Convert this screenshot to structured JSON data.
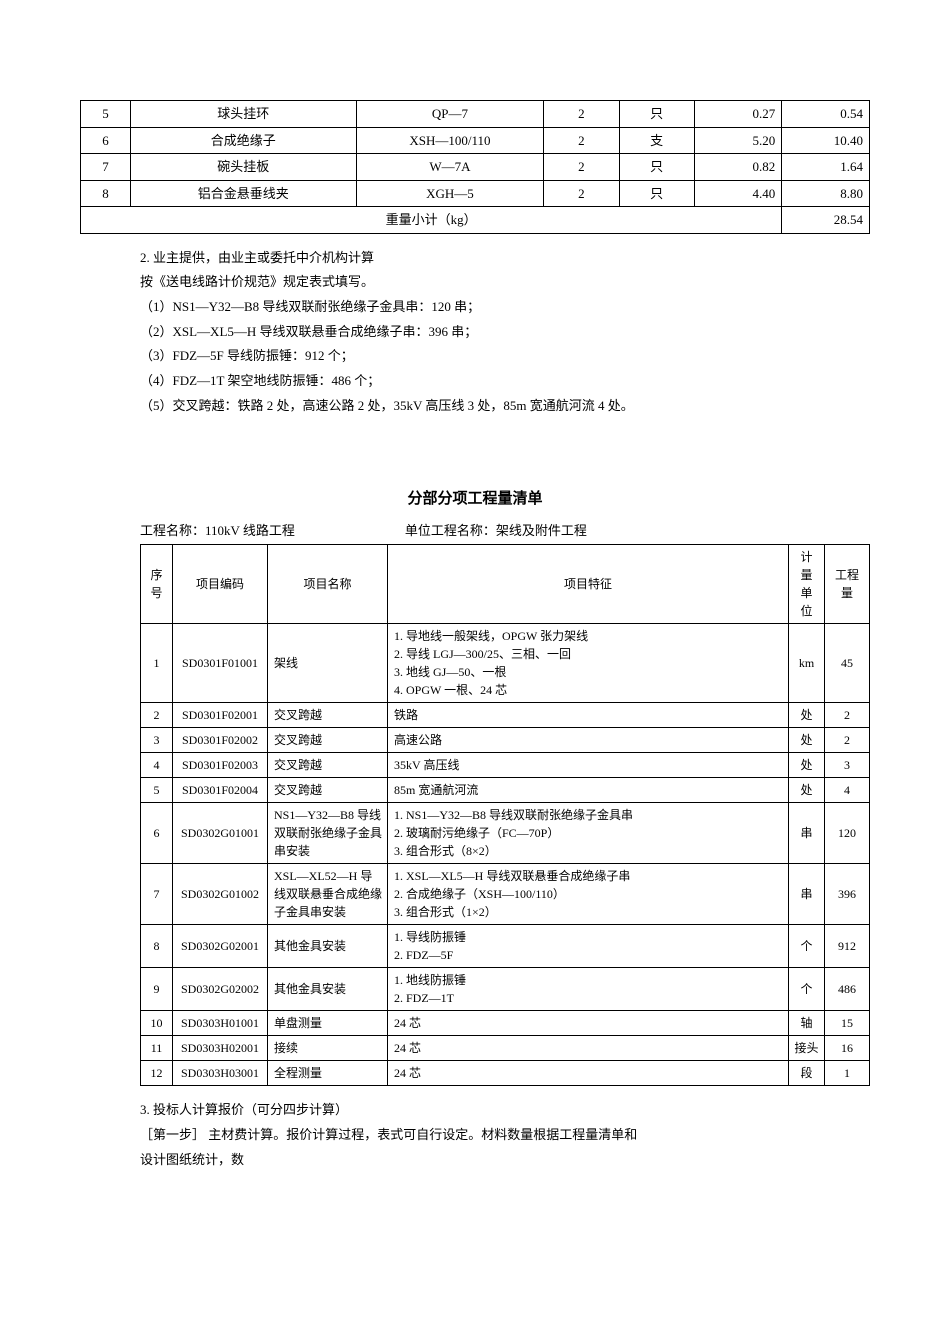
{
  "table1": {
    "rows": [
      {
        "seq": "5",
        "name": "球头挂环",
        "model": "QP—7",
        "qty": "2",
        "unit": "只",
        "weight": "0.27",
        "total": "0.54"
      },
      {
        "seq": "6",
        "name": "合成绝缘子",
        "model": "XSH—100/110",
        "qty": "2",
        "unit": "支",
        "weight": "5.20",
        "total": "10.40"
      },
      {
        "seq": "7",
        "name": "碗头挂板",
        "model": "W—7A",
        "qty": "2",
        "unit": "只",
        "weight": "0.82",
        "total": "1.64"
      },
      {
        "seq": "8",
        "name": "铝合金悬垂线夹",
        "model": "XGH—5",
        "qty": "2",
        "unit": "只",
        "weight": "4.40",
        "total": "8.80"
      }
    ],
    "subtotal_label": "重量小计（kg）",
    "subtotal_value": "28.54"
  },
  "notes": {
    "p1": "2. 业主提供，由业主或委托中介机构计算",
    "p2": "按《送电线路计价规范》规定表式填写。",
    "p3": "（1）NS1—Y32—B8 导线双联耐张绝缘子金具串：120 串；",
    "p4": "（2）XSL—XL5—H 导线双联悬垂合成绝缘子串：396 串；",
    "p5": "（3）FDZ—5F 导线防振锤：912 个；",
    "p6": "（4）FDZ—1T 架空地线防振锤：486 个；",
    "p7": "（5）交叉跨越：铁路 2 处，高速公路 2 处，35kV 高压线 3 处，85m 宽通航河流 4 处。"
  },
  "section_title": "分部分项工程量清单",
  "table2_meta": {
    "proj": "工程名称：110kV 线路工程",
    "unit_proj": "单位工程名称：架线及附件工程"
  },
  "table2": {
    "headers": {
      "seq": "序号",
      "code": "项目编码",
      "name": "项目名称",
      "feat": "项目特征",
      "mu": "计量单位",
      "amt": "工程量"
    },
    "rows": [
      {
        "seq": "1",
        "code": "SD0301F01001",
        "name": "架线",
        "feat": "1. 导地线一般架线，OPGW 张力架线\n2. 导线 LGJ—300/25、三相、一回\n3. 地线 GJ—50、一根\n4. OPGW 一根、24 芯",
        "mu": "km",
        "amt": "45"
      },
      {
        "seq": "2",
        "code": "SD0301F02001",
        "name": "交叉跨越",
        "feat": "铁路",
        "mu": "处",
        "amt": "2"
      },
      {
        "seq": "3",
        "code": "SD0301F02002",
        "name": "交叉跨越",
        "feat": "高速公路",
        "mu": "处",
        "amt": "2"
      },
      {
        "seq": "4",
        "code": "SD0301F02003",
        "name": "交叉跨越",
        "feat": "35kV 高压线",
        "mu": "处",
        "amt": "3"
      },
      {
        "seq": "5",
        "code": "SD0301F02004",
        "name": "交叉跨越",
        "feat": "85m 宽通航河流",
        "mu": "处",
        "amt": "4"
      },
      {
        "seq": "6",
        "code": "SD0302G01001",
        "name": "NS1—Y32—B8 导线双联耐张绝缘子金具串安装",
        "feat": "1. NS1—Y32—B8 导线双联耐张绝缘子金具串\n2. 玻璃耐污绝缘子（FC—70P）\n3. 组合形式（8×2）",
        "mu": "串",
        "amt": "120"
      },
      {
        "seq": "7",
        "code": "SD0302G01002",
        "name": "XSL—XL52—H 导线双联悬垂合成绝缘子金具串安装",
        "feat": "1. XSL—XL5—H 导线双联悬垂合成绝缘子串\n2. 合成绝缘子（XSH—100/110）\n3. 组合形式（1×2）",
        "mu": "串",
        "amt": "396"
      },
      {
        "seq": "8",
        "code": "SD0302G02001",
        "name": "其他金具安装",
        "feat": "1. 导线防振锤\n2. FDZ—5F",
        "mu": "个",
        "amt": "912"
      },
      {
        "seq": "9",
        "code": "SD0302G02002",
        "name": "其他金具安装",
        "feat": "1. 地线防振锤\n2. FDZ—1T",
        "mu": "个",
        "amt": "486"
      },
      {
        "seq": "10",
        "code": "SD0303H01001",
        "name": "单盘测量",
        "feat": "24 芯",
        "mu": "轴",
        "amt": "15"
      },
      {
        "seq": "11",
        "code": "SD0303H02001",
        "name": "接续",
        "feat": "24 芯",
        "mu": "接头",
        "amt": "16"
      },
      {
        "seq": "12",
        "code": "SD0303H03001",
        "name": "全程测量",
        "feat": "24 芯",
        "mu": "段",
        "amt": "1"
      }
    ]
  },
  "after": {
    "p1": "3. 投标人计算报价（可分四步计算）",
    "p2": "［第一步］ 主材费计算。报价计算过程，表式可自行设定。材料数量根据工程量清单和",
    "p3": "设计图纸统计，数"
  }
}
